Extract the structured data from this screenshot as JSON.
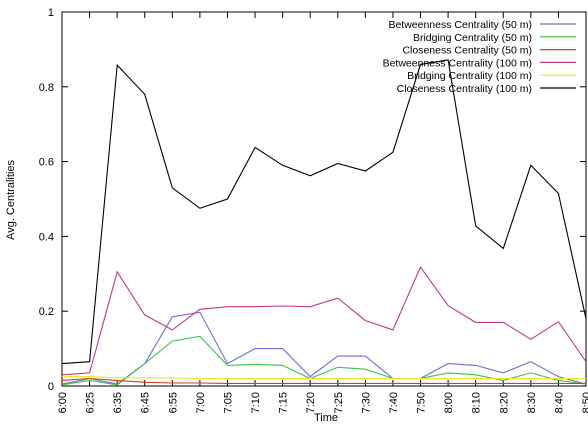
{
  "chart_data": {
    "type": "line",
    "title": "",
    "xlabel": "Time",
    "ylabel": "Avg. Centralities",
    "ylim": [
      0,
      1
    ],
    "y_ticks": [
      "0",
      "0.2",
      "0.4",
      "0.6",
      "0.8",
      "1"
    ],
    "grid": false,
    "legend_position": "top-right",
    "x": [
      "6:00",
      "6:25",
      "6:35",
      "6:45",
      "6:55",
      "7:00",
      "7:05",
      "7:10",
      "7:15",
      "7:20",
      "7:25",
      "7:30",
      "7:40",
      "7:50",
      "8:00",
      "8:10",
      "8:20",
      "8:30",
      "8:40",
      "8:50"
    ],
    "series": [
      {
        "name": "Betweenness Centrality (50 m)",
        "color": "#6e6ed8",
        "values": [
          0.005,
          0.02,
          0.005,
          0.06,
          0.185,
          0.197,
          0.06,
          0.1,
          0.1,
          0.025,
          0.08,
          0.08,
          0.02,
          0.02,
          0.06,
          0.055,
          0.035,
          0.065,
          0.025,
          0.005
        ]
      },
      {
        "name": "Bridging Centrality (50 m)",
        "color": "#3cc43c",
        "values": [
          0.003,
          0.015,
          0.003,
          0.06,
          0.12,
          0.133,
          0.055,
          0.058,
          0.055,
          0.02,
          0.05,
          0.045,
          0.02,
          0.02,
          0.035,
          0.03,
          0.015,
          0.035,
          0.015,
          0.005
        ]
      },
      {
        "name": "Closeness Centrality (50 m)",
        "color": "#d04020",
        "values": [
          0.015,
          0.02,
          0.015,
          0.01,
          0.008,
          0.008,
          0.007,
          0.007,
          0.007,
          0.007,
          0.007,
          0.007,
          0.007,
          0.007,
          0.007,
          0.007,
          0.007,
          0.007,
          0.007,
          0.007
        ]
      },
      {
        "name": "Betweenness Centrality (100 m)",
        "color": "#c03a8a",
        "values": [
          0.03,
          0.035,
          0.305,
          0.19,
          0.15,
          0.205,
          0.212,
          0.212,
          0.214,
          0.212,
          0.235,
          0.175,
          0.15,
          0.318,
          0.215,
          0.17,
          0.17,
          0.125,
          0.172,
          0.065
        ]
      },
      {
        "name": "Bridging Centrality (100 m)",
        "color": "#e8e830",
        "values": [
          0.025,
          0.025,
          0.022,
          0.022,
          0.022,
          0.02,
          0.02,
          0.02,
          0.02,
          0.02,
          0.02,
          0.02,
          0.02,
          0.02,
          0.02,
          0.02,
          0.02,
          0.02,
          0.02,
          0.02
        ]
      },
      {
        "name": "Closeness Centrality (100 m)",
        "color": "#000000",
        "values": [
          0.06,
          0.065,
          0.858,
          0.78,
          0.53,
          0.475,
          0.5,
          0.638,
          0.59,
          0.562,
          0.595,
          0.575,
          0.625,
          0.86,
          0.872,
          0.428,
          0.368,
          0.59,
          0.515,
          0.18
        ]
      }
    ]
  }
}
